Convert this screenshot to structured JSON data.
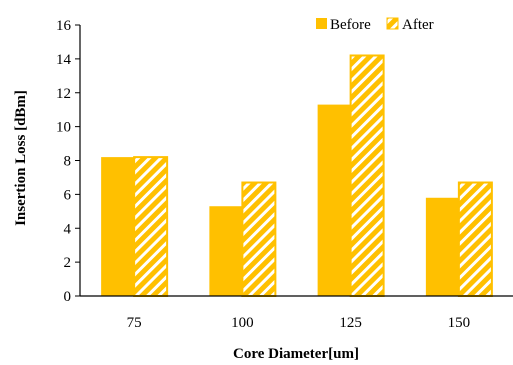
{
  "chart_data": {
    "type": "bar",
    "title": "",
    "xlabel": "Core Diameter[um]",
    "ylabel": "Insertion Loss [dBm]",
    "categories": [
      "75",
      "100",
      "125",
      "150"
    ],
    "ylim": [
      0,
      16
    ],
    "yticks": [
      "0",
      "2",
      "4",
      "6",
      "8",
      "10",
      "12",
      "14",
      "16"
    ],
    "grid": false,
    "legend_position": "top-right",
    "series": [
      {
        "name": "Before",
        "values": [
          8.2,
          5.3,
          11.3,
          5.8
        ],
        "color": "#FFC000",
        "pattern": "solid"
      },
      {
        "name": "After",
        "values": [
          8.2,
          6.7,
          14.2,
          6.7
        ],
        "color": "#FFC000",
        "pattern": "diagonal-hatch"
      }
    ]
  }
}
